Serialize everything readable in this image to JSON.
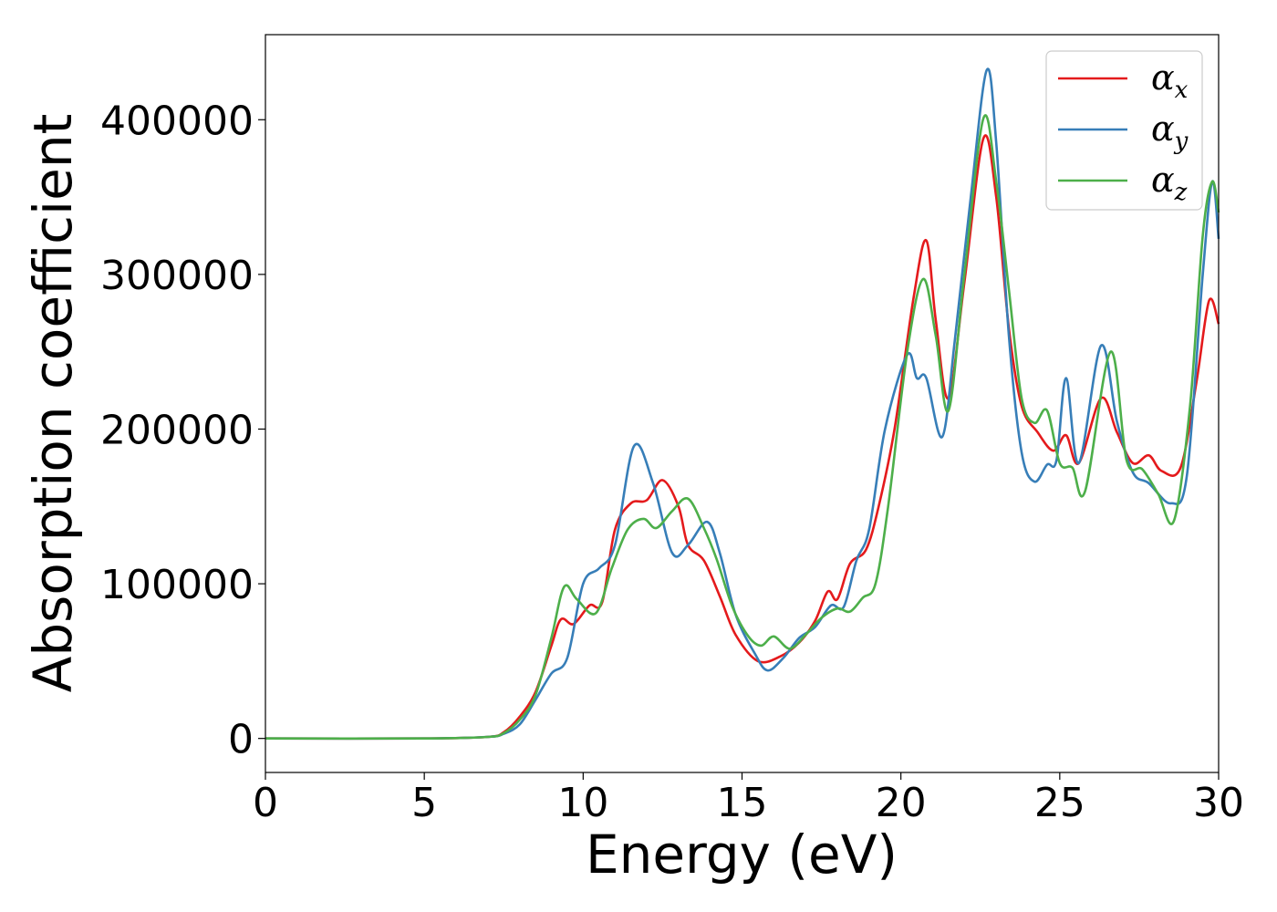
{
  "chart_data": {
    "type": "line",
    "title": "",
    "xlabel": "Energy (eV)",
    "ylabel": "Absorption coefficient",
    "xlim": [
      0,
      30
    ],
    "ylim": [
      -22000,
      455000
    ],
    "xticks": [
      "0",
      "5",
      "10",
      "15",
      "20",
      "25",
      "30"
    ],
    "yticks": [
      "0",
      "100000",
      "200000",
      "300000",
      "400000"
    ],
    "grid": false,
    "legend_position": "top-right",
    "series": [
      {
        "name": "α",
        "subscript": "x",
        "color": "#e41a1c",
        "points": [
          [
            0,
            0
          ],
          [
            5,
            0
          ],
          [
            7,
            1000
          ],
          [
            7.5,
            4000
          ],
          [
            8,
            14000
          ],
          [
            8.5,
            30000
          ],
          [
            9,
            60000
          ],
          [
            9.3,
            77000
          ],
          [
            9.7,
            74000
          ],
          [
            10.2,
            86000
          ],
          [
            10.6,
            88000
          ],
          [
            11,
            135000
          ],
          [
            11.5,
            152000
          ],
          [
            12,
            154000
          ],
          [
            12.5,
            167000
          ],
          [
            13,
            150000
          ],
          [
            13.3,
            125000
          ],
          [
            13.8,
            115000
          ],
          [
            14.3,
            92000
          ],
          [
            14.8,
            67000
          ],
          [
            15.5,
            50000
          ],
          [
            16.2,
            53000
          ],
          [
            16.8,
            62000
          ],
          [
            17.3,
            76000
          ],
          [
            17.7,
            95000
          ],
          [
            18,
            90000
          ],
          [
            18.4,
            113000
          ],
          [
            18.9,
            122000
          ],
          [
            19.3,
            150000
          ],
          [
            19.8,
            200000
          ],
          [
            20.4,
            285000
          ],
          [
            20.8,
            322000
          ],
          [
            21.1,
            270000
          ],
          [
            21.5,
            220000
          ],
          [
            22,
            295000
          ],
          [
            22.6,
            388000
          ],
          [
            23,
            350000
          ],
          [
            23.4,
            265000
          ],
          [
            23.8,
            215000
          ],
          [
            24.3,
            198000
          ],
          [
            24.8,
            186000
          ],
          [
            25.2,
            196000
          ],
          [
            25.6,
            178000
          ],
          [
            26.3,
            220000
          ],
          [
            26.8,
            198000
          ],
          [
            27.3,
            178000
          ],
          [
            27.8,
            183000
          ],
          [
            28.2,
            173000
          ],
          [
            28.8,
            175000
          ],
          [
            29.3,
            230000
          ],
          [
            29.7,
            283000
          ],
          [
            30,
            268000
          ]
        ]
      },
      {
        "name": "α",
        "subscript": "y",
        "color": "#377eb8",
        "points": [
          [
            0,
            0
          ],
          [
            5,
            0
          ],
          [
            7,
            1000
          ],
          [
            7.5,
            3000
          ],
          [
            8,
            9000
          ],
          [
            8.5,
            25000
          ],
          [
            9,
            42000
          ],
          [
            9.5,
            52000
          ],
          [
            10,
            100000
          ],
          [
            10.5,
            110000
          ],
          [
            11,
            125000
          ],
          [
            11.6,
            189000
          ],
          [
            12.2,
            165000
          ],
          [
            12.8,
            120000
          ],
          [
            13.3,
            125000
          ],
          [
            13.9,
            140000
          ],
          [
            14.3,
            120000
          ],
          [
            14.8,
            80000
          ],
          [
            15.4,
            55000
          ],
          [
            15.8,
            44000
          ],
          [
            16.3,
            52000
          ],
          [
            16.8,
            65000
          ],
          [
            17.3,
            72000
          ],
          [
            17.8,
            86000
          ],
          [
            18.2,
            85000
          ],
          [
            18.6,
            115000
          ],
          [
            19,
            135000
          ],
          [
            19.5,
            200000
          ],
          [
            20.2,
            248000
          ],
          [
            20.5,
            233000
          ],
          [
            20.8,
            233000
          ],
          [
            21.3,
            195000
          ],
          [
            21.7,
            258000
          ],
          [
            22.2,
            350000
          ],
          [
            22.7,
            432000
          ],
          [
            23,
            385000
          ],
          [
            23.4,
            260000
          ],
          [
            23.8,
            185000
          ],
          [
            24.2,
            166000
          ],
          [
            24.6,
            177000
          ],
          [
            24.9,
            180000
          ],
          [
            25.2,
            233000
          ],
          [
            25.6,
            178000
          ],
          [
            26.3,
            254000
          ],
          [
            26.8,
            205000
          ],
          [
            27.3,
            172000
          ],
          [
            27.8,
            165000
          ],
          [
            28.5,
            152000
          ],
          [
            29,
            170000
          ],
          [
            29.5,
            300000
          ],
          [
            29.8,
            360000
          ],
          [
            30,
            323000
          ]
        ]
      },
      {
        "name": "α",
        "subscript": "z",
        "color": "#4daf4a",
        "points": [
          [
            0,
            0
          ],
          [
            5,
            0
          ],
          [
            7,
            1000
          ],
          [
            7.5,
            3500
          ],
          [
            8,
            12000
          ],
          [
            8.5,
            28000
          ],
          [
            9,
            65000
          ],
          [
            9.4,
            98000
          ],
          [
            9.8,
            90000
          ],
          [
            10.4,
            81000
          ],
          [
            10.9,
            110000
          ],
          [
            11.4,
            135000
          ],
          [
            11.9,
            142000
          ],
          [
            12.3,
            136000
          ],
          [
            12.8,
            147000
          ],
          [
            13.3,
            155000
          ],
          [
            13.8,
            136000
          ],
          [
            14.2,
            116000
          ],
          [
            14.7,
            85000
          ],
          [
            15.2,
            66000
          ],
          [
            15.6,
            60000
          ],
          [
            16,
            66000
          ],
          [
            16.5,
            58000
          ],
          [
            17,
            67000
          ],
          [
            17.5,
            78000
          ],
          [
            18,
            84000
          ],
          [
            18.4,
            82000
          ],
          [
            18.8,
            91000
          ],
          [
            19.2,
            100000
          ],
          [
            19.6,
            150000
          ],
          [
            20.2,
            250000
          ],
          [
            20.7,
            297000
          ],
          [
            21.1,
            260000
          ],
          [
            21.5,
            212000
          ],
          [
            22,
            300000
          ],
          [
            22.6,
            401000
          ],
          [
            23,
            360000
          ],
          [
            23.4,
            290000
          ],
          [
            23.8,
            220000
          ],
          [
            24.2,
            204000
          ],
          [
            24.6,
            212000
          ],
          [
            25,
            178000
          ],
          [
            25.4,
            175000
          ],
          [
            25.8,
            160000
          ],
          [
            26.6,
            250000
          ],
          [
            27.1,
            180000
          ],
          [
            27.6,
            174000
          ],
          [
            28.1,
            158000
          ],
          [
            28.6,
            141000
          ],
          [
            29.1,
            215000
          ],
          [
            29.5,
            325000
          ],
          [
            29.8,
            360000
          ],
          [
            30,
            340000
          ]
        ]
      }
    ]
  }
}
